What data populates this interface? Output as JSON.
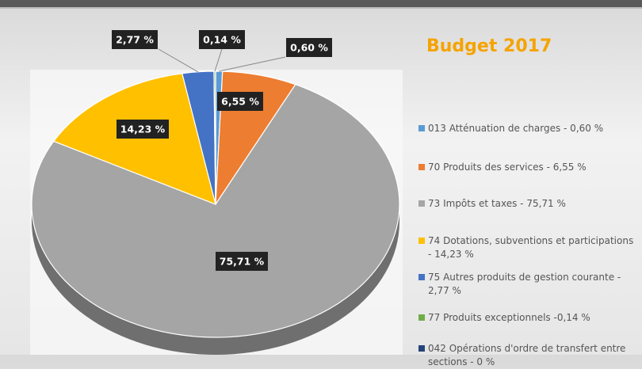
{
  "chart_data": {
    "type": "pie",
    "title": "Budget 2017",
    "categories": [
      "013 Atténuation de charges - 0,60 %",
      "70 Produits des services - 6,55 %",
      "73 Impôts et taxes - 75,71 %",
      "74 Dotations, subventions et participations - 14,23 %",
      "75 Autres produits de gestion courante - 2,77 %",
      "77 Produits exceptionnels -0,14 %",
      "042 Opérations d'ordre de transfert entre sections - 0 %"
    ],
    "values": [
      0.6,
      6.55,
      75.71,
      14.23,
      2.77,
      0.14,
      0
    ],
    "value_labels": [
      "0,60 %",
      "6,55 %",
      "75,71 %",
      "14,23 %",
      "2,77 %",
      "0,14 %",
      null
    ],
    "colors": [
      "#5b9bd5",
      "#ed7d31",
      "#a5a5a5",
      "#ffc000",
      "#4472c4",
      "#70ad47",
      "#264478"
    ],
    "legend": "right"
  }
}
